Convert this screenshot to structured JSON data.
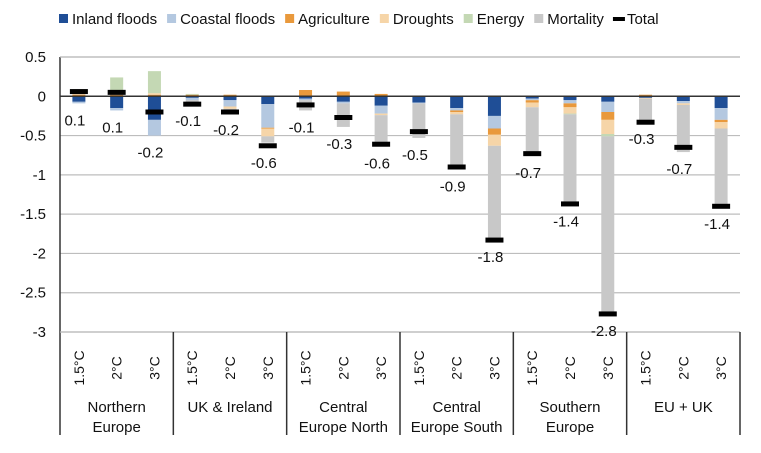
{
  "chart_data": {
    "type": "bar",
    "stacked": true,
    "title": "",
    "xlabel": "",
    "ylabel": "",
    "ylim": [
      -3,
      0.5
    ],
    "yticks": [
      "0.5",
      "0",
      "-0.5",
      "-1",
      "-1.5",
      "-2",
      "-2.5",
      "-3"
    ],
    "ytick_values": [
      0.5,
      0,
      -0.5,
      -1,
      -1.5,
      -2,
      -2.5,
      -3
    ],
    "grid": true,
    "legend_position": "top",
    "groups": [
      {
        "name": "Northern Europe",
        "lines": [
          "Northern",
          "Europe"
        ]
      },
      {
        "name": "UK & Ireland",
        "lines": [
          "UK & Ireland"
        ]
      },
      {
        "name": "Central Europe North",
        "lines": [
          "Central",
          "Europe North"
        ]
      },
      {
        "name": "Central Europe South",
        "lines": [
          "Central",
          "Europe South"
        ]
      },
      {
        "name": "Southern Europe",
        "lines": [
          "Southern",
          "Europe"
        ]
      },
      {
        "name": "EU + UK",
        "lines": [
          "EU + UK"
        ]
      }
    ],
    "scenarios": [
      "1.5°C",
      "2°C",
      "3°C"
    ],
    "series": [
      {
        "name": "Inland floods",
        "color": "#1f4e96",
        "values": [
          -0.07,
          -0.15,
          -0.3,
          -0.02,
          -0.05,
          -0.1,
          -0.03,
          -0.07,
          -0.12,
          -0.08,
          -0.15,
          -0.25,
          -0.03,
          -0.05,
          -0.07,
          -0.02,
          -0.06,
          -0.15
        ]
      },
      {
        "name": "Coastal floods",
        "color": "#b4c8e0",
        "values": [
          -0.02,
          -0.03,
          -0.2,
          -0.03,
          -0.08,
          -0.3,
          -0.02,
          -0.02,
          -0.1,
          -0.01,
          -0.03,
          -0.16,
          -0.02,
          -0.04,
          -0.13,
          0,
          -0.03,
          -0.15
        ]
      },
      {
        "name": "Agriculture",
        "color": "#e9993c",
        "values": [
          0.02,
          0.02,
          0.02,
          0.02,
          0.02,
          -0.01,
          0.08,
          0.06,
          0.03,
          0,
          -0.02,
          -0.08,
          -0.03,
          -0.05,
          -0.1,
          0.02,
          0.01,
          -0.03
        ]
      },
      {
        "name": "Droughts",
        "color": "#f6d5a8",
        "values": [
          0.02,
          0.02,
          0.02,
          0,
          -0.03,
          -0.1,
          0,
          0,
          -0.02,
          0.01,
          -0.03,
          -0.14,
          -0.06,
          -0.08,
          -0.18,
          -0.01,
          -0.02,
          -0.08
        ]
      },
      {
        "name": "Energy",
        "color": "#c4d8b4",
        "values": [
          0.05,
          0.2,
          0.28,
          0.01,
          0,
          0,
          0,
          0,
          0,
          0,
          0,
          0,
          0,
          -0.01,
          -0.03,
          0,
          0,
          0
        ]
      },
      {
        "name": "Mortality",
        "color": "#c8c8c8",
        "values": [
          0,
          0,
          0,
          -0.05,
          -0.05,
          -0.08,
          -0.13,
          -0.3,
          -0.4,
          -0.44,
          -0.7,
          -1.2,
          -0.62,
          -1.15,
          -2.25,
          -0.3,
          -0.6,
          -1.0
        ]
      }
    ],
    "total": {
      "name": "Total",
      "color": "#000000",
      "values": [
        0.1,
        0.1,
        -0.2,
        -0.1,
        -0.2,
        -0.6,
        -0.1,
        -0.3,
        -0.6,
        -0.5,
        -0.9,
        -1.8,
        -0.7,
        -1.4,
        -2.8,
        -0.3,
        -0.7,
        -1.4
      ],
      "marker_values": [
        0.06,
        0.05,
        -0.2,
        -0.1,
        -0.2,
        -0.63,
        -0.11,
        -0.27,
        -0.61,
        -0.45,
        -0.9,
        -1.83,
        -0.73,
        -1.37,
        -2.77,
        -0.33,
        -0.65,
        -1.4
      ]
    }
  },
  "legend": [
    {
      "label": "Inland floods",
      "color": "#1f4e96",
      "kind": "square"
    },
    {
      "label": "Coastal floods",
      "color": "#b4c8e0",
      "kind": "square"
    },
    {
      "label": "Agriculture",
      "color": "#e9993c",
      "kind": "square"
    },
    {
      "label": "Droughts",
      "color": "#f6d5a8",
      "kind": "square"
    },
    {
      "label": "Energy",
      "color": "#c4d8b4",
      "kind": "square"
    },
    {
      "label": "Mortality",
      "color": "#c8c8c8",
      "kind": "square"
    },
    {
      "label": "Total",
      "color": "#000000",
      "kind": "dash"
    }
  ]
}
